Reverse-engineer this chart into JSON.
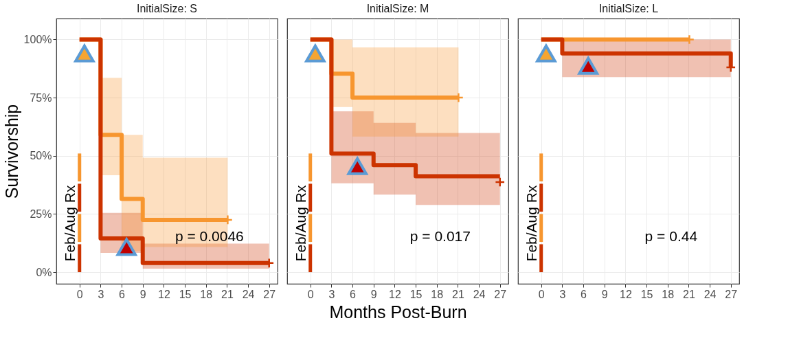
{
  "chart_data": [
    {
      "type": "step",
      "title": "InitialSize: S",
      "ylabel": "Survivorship",
      "xlim": [
        -3.3,
        28.2
      ],
      "ylim": [
        -5,
        109
      ],
      "xticks": [
        0,
        3,
        6,
        9,
        12,
        15,
        18,
        21,
        24,
        27
      ],
      "yticks": [
        {
          "value": 0,
          "label": "0%"
        },
        {
          "value": 25,
          "label": "25%"
        },
        {
          "value": 50,
          "label": "50%"
        },
        {
          "value": 75,
          "label": "75%"
        },
        {
          "value": 100,
          "label": "100%"
        }
      ],
      "grid": true,
      "annotations": [
        "Feb/Aug Rx",
        "p = 0.0046"
      ],
      "series": [
        {
          "color": "#f7962f",
          "x": [
            0,
            3,
            6,
            9,
            21.1
          ],
          "values": [
            100,
            59,
            31.5,
            22.5,
            22.5
          ],
          "lower": [
            null,
            41.7,
            9,
            10.8,
            10.8
          ],
          "upper": [
            null,
            83.5,
            59,
            49.2,
            49.2
          ]
        },
        {
          "color": "#cc3300",
          "x": [
            0,
            3,
            9,
            27
          ],
          "values": [
            100,
            14.5,
            3.9,
            3.9
          ],
          "lower": [
            null,
            8.3,
            1.5,
            1.5
          ],
          "upper": [
            null,
            25.5,
            12.3,
            12.3
          ]
        },
        {
          "type": "scatter",
          "marker": "cross",
          "color": "#f7962f",
          "x": [
            21.1
          ],
          "values": [
            22.5
          ]
        },
        {
          "type": "scatter",
          "marker": "cross",
          "color": "#cc3300",
          "x": [
            27
          ],
          "values": [
            3.9
          ]
        },
        {
          "type": "scatter",
          "marker": "triangle",
          "color": "#f6a531",
          "x": [
            0.7
          ],
          "values": [
            94
          ]
        },
        {
          "type": "scatter",
          "marker": "triangle",
          "color": "#c00000",
          "x": [
            6.7
          ],
          "values": [
            10.8
          ]
        }
      ]
    },
    {
      "type": "step",
      "title": "InitialSize: M",
      "xlabel": "Months Post-Burn",
      "xlim": [
        -3.3,
        28.2
      ],
      "ylim": [
        -5,
        109
      ],
      "xticks": [
        0,
        3,
        6,
        9,
        12,
        15,
        18,
        21,
        24,
        27
      ],
      "yticks": [
        0,
        25,
        50,
        75,
        100
      ],
      "grid": true,
      "tick_labels": "x",
      "annotations": [
        "Feb/Aug Rx",
        "p = 0.017"
      ],
      "series": [
        {
          "color": "#f7962f",
          "x": [
            0,
            3,
            6,
            21.1
          ],
          "values": [
            100,
            85.3,
            75,
            75
          ],
          "lower": [
            null,
            71,
            58.3,
            58.3
          ],
          "upper": [
            null,
            100,
            96.6,
            96.6
          ]
        },
        {
          "color": "#cc3300",
          "x": [
            0,
            3,
            9,
            15,
            27
          ],
          "values": [
            100,
            51,
            46,
            41.2,
            41.2
          ],
          "lower": [
            null,
            38.2,
            33.3,
            28.9,
            28.9
          ],
          "upper": [
            null,
            69.1,
            64.2,
            59.8,
            59.8
          ]
        },
        {
          "type": "scatter",
          "marker": "cross",
          "color": "#f7962f",
          "x": [
            21.1
          ],
          "values": [
            75
          ]
        },
        {
          "type": "scatter",
          "marker": "cross",
          "color": "#cc3300",
          "x": [
            27
          ],
          "values": [
            38.7
          ]
        },
        {
          "type": "scatter",
          "marker": "triangle",
          "color": "#f6a531",
          "x": [
            0.7
          ],
          "values": [
            94
          ]
        },
        {
          "type": "scatter",
          "marker": "triangle",
          "color": "#c00000",
          "x": [
            6.7
          ],
          "values": [
            45.6
          ]
        }
      ]
    },
    {
      "type": "step",
      "title": "InitialSize: L",
      "xlim": [
        -3.3,
        28.2
      ],
      "ylim": [
        -5,
        109
      ],
      "xticks": [
        0,
        3,
        6,
        9,
        12,
        15,
        18,
        21,
        24,
        27
      ],
      "yticks": [
        0,
        25,
        50,
        75,
        100
      ],
      "grid": true,
      "tick_labels": "x",
      "annotations": [
        "Feb/Aug Rx",
        "p = 0.44"
      ],
      "series": [
        {
          "color": "#f7962f",
          "x": [
            0,
            21.1
          ],
          "values": [
            100,
            100
          ]
        },
        {
          "color": "#cc3300",
          "x": [
            0,
            3,
            27
          ],
          "values": [
            100,
            94,
            88
          ],
          "lower": [
            null,
            83.8,
            83.8
          ],
          "upper": [
            null,
            100,
            100
          ]
        },
        {
          "type": "scatter",
          "marker": "cross",
          "color": "#f7962f",
          "x": [
            21.1
          ],
          "values": [
            100
          ]
        },
        {
          "type": "scatter",
          "marker": "cross",
          "color": "#cc3300",
          "x": [
            27
          ],
          "values": [
            88
          ]
        },
        {
          "type": "scatter",
          "marker": "triangle",
          "color": "#f6a531",
          "x": [
            0.7
          ],
          "values": [
            94
          ]
        },
        {
          "type": "scatter",
          "marker": "triangle",
          "color": "#c00000",
          "x": [
            6.7
          ],
          "values": [
            88.7
          ]
        }
      ]
    }
  ]
}
